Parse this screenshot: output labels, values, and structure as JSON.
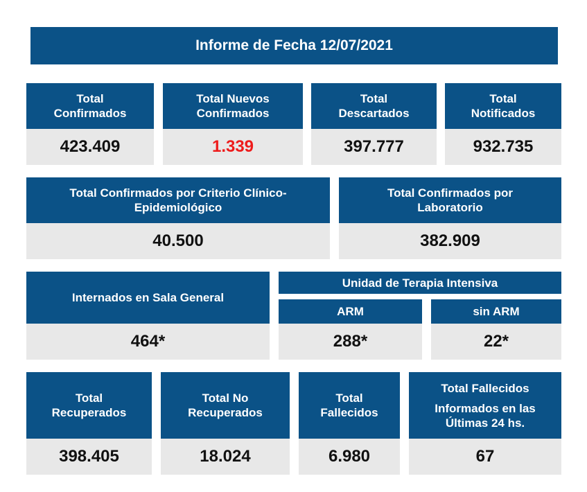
{
  "title": "Informe de Fecha 12/07/2021",
  "row1": [
    {
      "label1": "Total",
      "label2": "Confirmados",
      "value": "423.409"
    },
    {
      "label1": "Total Nuevos",
      "label2": "Confirmados",
      "value": "1.339"
    },
    {
      "label1": "Total",
      "label2": "Descartados",
      "value": "397.777"
    },
    {
      "label1": "Total",
      "label2": "Notificados",
      "value": "932.735"
    }
  ],
  "row2": [
    {
      "label1": "Total Confirmados por Criterio Clínico-",
      "label2": "Epidemiológico",
      "value": "40.500"
    },
    {
      "label1": "Total Confirmados por",
      "label2": "Laboratorio",
      "value": "382.909"
    }
  ],
  "row3": {
    "internados": {
      "label": "Internados en Sala General",
      "value": "464*"
    },
    "uti": {
      "label": "Unidad de Terapia Intensiva"
    },
    "arm": {
      "label": "ARM",
      "value": "288*"
    },
    "sin_arm": {
      "label": "sin ARM",
      "value": "22*"
    }
  },
  "row4": [
    {
      "label1": "Total",
      "label2": "Recuperados",
      "value": "398.405"
    },
    {
      "label1": "Total No",
      "label2": "Recuperados",
      "value": "18.024"
    },
    {
      "label1": "Total",
      "label2": "Fallecidos",
      "value": "6.980"
    },
    {
      "label1": "Total Fallecidos",
      "label2": "Informados en las",
      "label3": "Últimas 24 hs.",
      "value": "67"
    }
  ],
  "colors": {
    "header": "#0b5287",
    "value_bg": "#e8e8e8",
    "highlight": "#ee1c1c"
  }
}
